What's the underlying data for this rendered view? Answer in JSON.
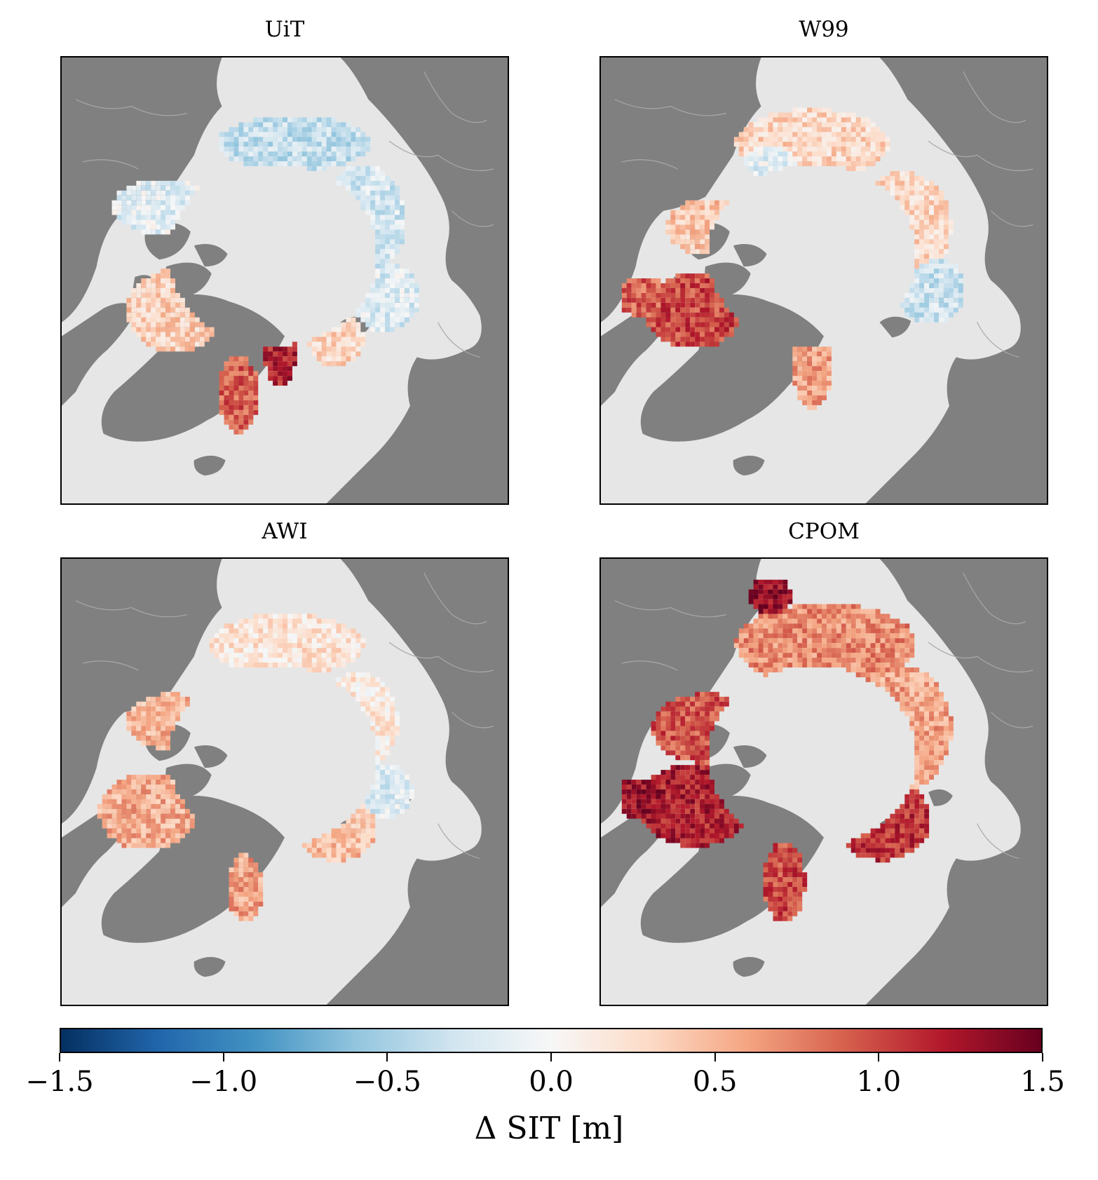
{
  "panels": [
    {
      "title": "UiT"
    },
    {
      "title": "W99"
    },
    {
      "title": "AWI"
    },
    {
      "title": "CPOM"
    }
  ],
  "colors": {
    "land": "#808080",
    "ocean": "#e6e6e6",
    "border": "#a8a8a8"
  },
  "colorbar": {
    "label": "Δ SIT [m]",
    "colormap": "RdBu_r",
    "range": [
      -1.5,
      1.5
    ],
    "ticks": [
      {
        "value": -1.5,
        "label": "−1.5"
      },
      {
        "value": -1.0,
        "label": "−1.0"
      },
      {
        "value": -0.5,
        "label": "−0.5"
      },
      {
        "value": 0.0,
        "label": "0.0"
      },
      {
        "value": 0.5,
        "label": "0.5"
      },
      {
        "value": 1.0,
        "label": "1.0"
      },
      {
        "value": 1.5,
        "label": "1.5"
      }
    ]
  }
}
